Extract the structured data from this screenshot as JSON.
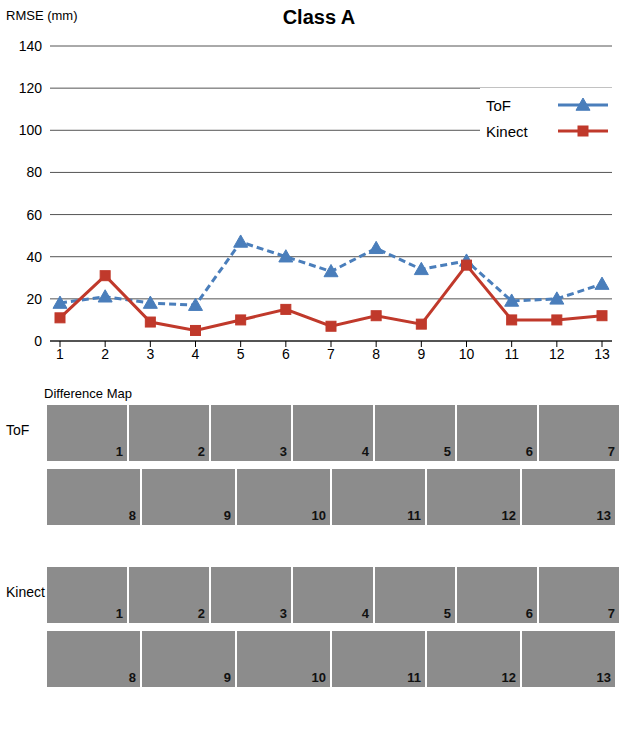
{
  "chart_data": {
    "type": "line",
    "title": "Class A",
    "y_label": "RMSE (mm)",
    "categories": [
      "1",
      "2",
      "3",
      "4",
      "5",
      "6",
      "7",
      "8",
      "9",
      "10",
      "11",
      "12",
      "13"
    ],
    "series": [
      {
        "name": "ToF",
        "color": "#4a7ebb",
        "marker": "triangle",
        "line_style": "dashed",
        "values": [
          18,
          21,
          18,
          17,
          47,
          40,
          33,
          44,
          34,
          38,
          19,
          20,
          27
        ]
      },
      {
        "name": "Kinect",
        "color": "#c0392b",
        "marker": "square",
        "line_style": "solid",
        "values": [
          11,
          31,
          9,
          5,
          10,
          15,
          7,
          12,
          8,
          36,
          10,
          10,
          12
        ]
      }
    ],
    "ylim": [
      0,
      140
    ],
    "yticks": [
      0,
      20,
      40,
      60,
      80,
      100,
      120,
      140
    ],
    "grid": true,
    "legend": "upper right"
  },
  "difference_map": {
    "title": "Difference Map",
    "sensors": [
      "ToF",
      "Kinect"
    ],
    "panels": [
      "1",
      "2",
      "3",
      "4",
      "5",
      "6",
      "7",
      "8",
      "9",
      "10",
      "11",
      "12",
      "13"
    ]
  }
}
